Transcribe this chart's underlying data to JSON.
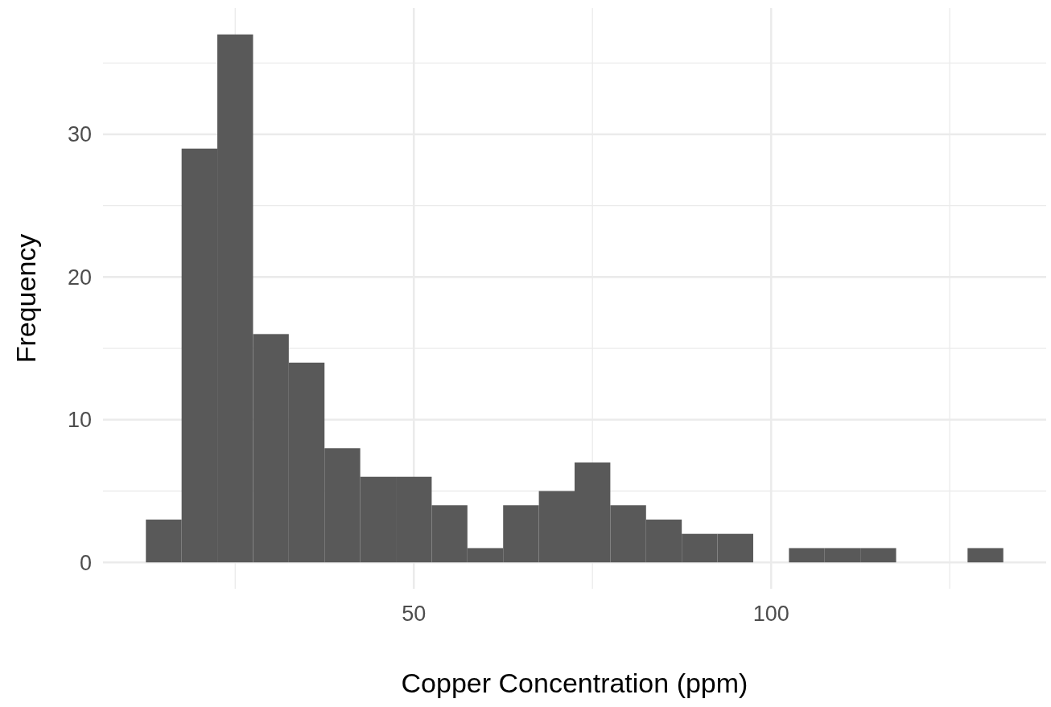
{
  "chart_data": {
    "type": "histogram",
    "xlabel": "Copper Concentration (ppm)",
    "ylabel": "Frequency",
    "bins": [
      12.5,
      17.5,
      22.5,
      27.5,
      32.5,
      37.5,
      42.5,
      47.5,
      52.5,
      57.5,
      62.5,
      67.5,
      72.5,
      77.5,
      82.5,
      87.5,
      92.5,
      97.5,
      102.5,
      107.5,
      112.5,
      117.5,
      122.5,
      127.5,
      132.5
    ],
    "values": [
      3,
      29,
      37,
      16,
      14,
      8,
      6,
      6,
      4,
      1,
      4,
      5,
      7,
      4,
      3,
      2,
      2,
      0,
      1,
      1,
      1,
      0,
      0,
      1
    ],
    "color": "#595959",
    "xlim": [
      6.5,
      138.5
    ],
    "xticks": [
      {
        "value": 25,
        "label": null
      },
      50,
      {
        "value": 75,
        "label": null
      },
      100,
      {
        "value": 125,
        "label": null
      }
    ],
    "ylim": [
      -1.85,
      38.85
    ],
    "yticks": [
      0,
      {
        "value": 5,
        "label": null
      },
      10,
      {
        "value": 15,
        "label": null
      },
      20,
      {
        "value": 25,
        "label": null
      },
      30,
      {
        "value": 35,
        "label": null
      }
    ],
    "grid": true
  }
}
